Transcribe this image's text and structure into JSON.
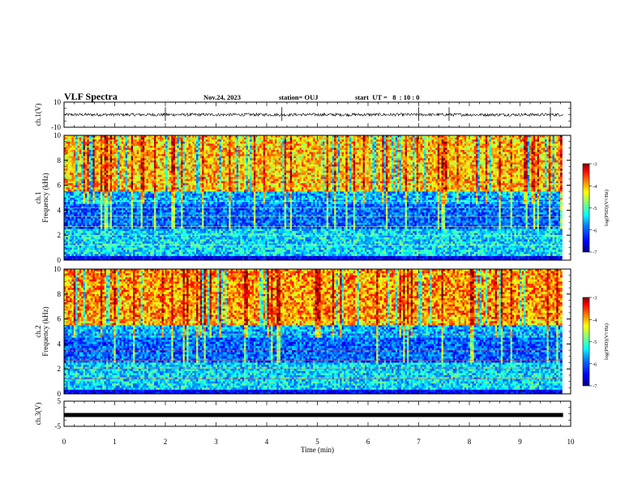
{
  "header": {
    "title": "VLF Spectra",
    "date": "Nov.24, 2023",
    "station": "station= OUJ",
    "start_ut": "start  UT =   8  : 10 : 0"
  },
  "colors": {
    "axis": "#000000",
    "trace": "#000000",
    "colormap": [
      "#00007f",
      "#0000ff",
      "#007fff",
      "#00ffff",
      "#7fff7f",
      "#ffff00",
      "#ff7f00",
      "#ff0000",
      "#7f0000"
    ]
  },
  "chart_data": [
    {
      "type": "line",
      "name": "ch1-waveform",
      "ylabel": "ch.1(V)",
      "ylim": [
        -10,
        10
      ],
      "yticks": [
        "10",
        "-10"
      ],
      "xlim": [
        0,
        10
      ],
      "baseline": 0,
      "description_of_trace": "dense noise band around 0 V with occasional spikes",
      "amplitude_typical": 1.2,
      "spikes_at_min": [
        2.0,
        4.3,
        7.0,
        7.6,
        9.6
      ]
    },
    {
      "type": "heatmap",
      "name": "ch1-spectrogram",
      "ylabel_line1": "ch.1",
      "ylabel_line2": "Frequency (kHz)",
      "ylim": [
        0,
        10
      ],
      "yticks": [
        "0",
        "2",
        "4",
        "6",
        "8",
        "10"
      ],
      "xlim": [
        0,
        9.83
      ],
      "colorbar": {
        "label": "log(PSD)(V²/Hz)",
        "range": [
          -7,
          -3
        ],
        "ticks": [
          "-3",
          "-4",
          "-5",
          "-6",
          "-7"
        ]
      }
    },
    {
      "type": "heatmap",
      "name": "ch2-spectrogram",
      "ylabel_line1": "ch.2",
      "ylabel_line2": "Frequency (kHz)",
      "ylim": [
        0,
        10
      ],
      "yticks": [
        "0",
        "2",
        "4",
        "6",
        "8",
        "10"
      ],
      "xlim": [
        0,
        9.83
      ],
      "colorbar": {
        "label": "log(PSD)(V²/Hz)",
        "range": [
          -7,
          -3
        ],
        "ticks": [
          "-3",
          "-4",
          "-5",
          "-6",
          "-7"
        ]
      }
    },
    {
      "type": "line",
      "name": "ch3-waveform",
      "ylabel": "ch.3(V)",
      "ylim": [
        -5,
        5
      ],
      "yticks": [
        "5",
        "-5"
      ],
      "xlim": [
        0,
        10
      ],
      "baseline": -0.5
    }
  ],
  "xaxis": {
    "label": "Time  (min)",
    "ticks": [
      "0",
      "1",
      "2",
      "3",
      "4",
      "5",
      "6",
      "7",
      "8",
      "9",
      "10"
    ],
    "range": [
      0,
      10
    ]
  }
}
